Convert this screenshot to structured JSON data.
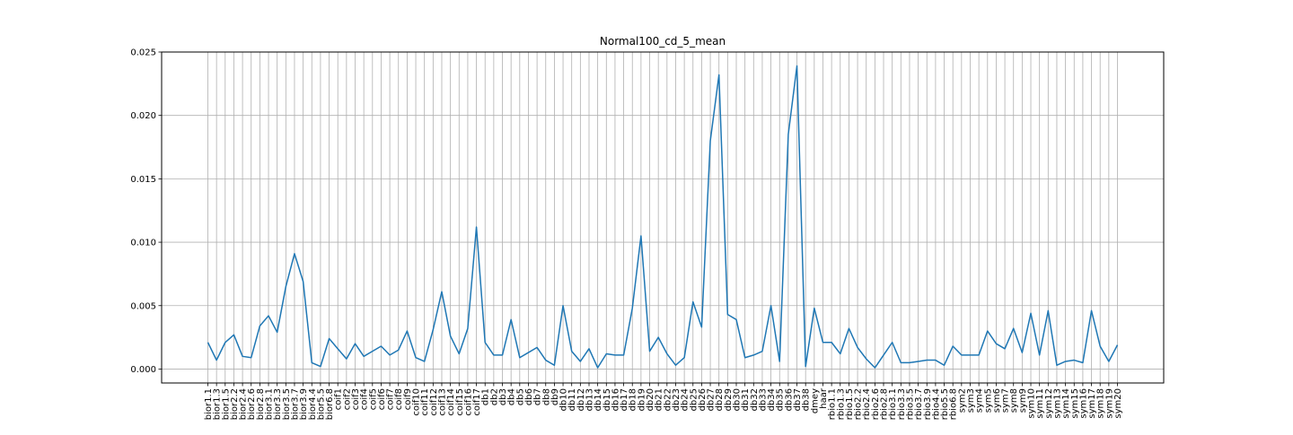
{
  "chart_data": {
    "type": "line",
    "title": "Normal100_cd_5_mean",
    "xlabel": "",
    "ylabel": "",
    "ylim": [
      -0.0011,
      0.025
    ],
    "y_ticks": [
      0.0,
      0.005,
      0.01,
      0.015,
      0.02,
      0.025
    ],
    "y_tick_labels": [
      "0.000",
      "0.005",
      "0.010",
      "0.015",
      "0.020",
      "0.025"
    ],
    "grid": true,
    "line_color": "#1f77b4",
    "categories": [
      "bior1.1",
      "bior1.3",
      "bior1.5",
      "bior2.2",
      "bior2.4",
      "bior2.6",
      "bior2.8",
      "bior3.1",
      "bior3.3",
      "bior3.5",
      "bior3.7",
      "bior3.9",
      "bior4.4",
      "bior5.5",
      "bior6.8",
      "coif1",
      "coif2",
      "coif3",
      "coif4",
      "coif5",
      "coif6",
      "coif7",
      "coif8",
      "coif9",
      "coif10",
      "coif11",
      "coif12",
      "coif13",
      "coif14",
      "coif15",
      "coif16",
      "coif17",
      "db1",
      "db2",
      "db3",
      "db4",
      "db5",
      "db6",
      "db7",
      "db8",
      "db9",
      "db10",
      "db11",
      "db12",
      "db13",
      "db14",
      "db15",
      "db16",
      "db17",
      "db18",
      "db19",
      "db20",
      "db21",
      "db22",
      "db23",
      "db24",
      "db25",
      "db26",
      "db27",
      "db28",
      "db29",
      "db30",
      "db31",
      "db32",
      "db33",
      "db34",
      "db35",
      "db36",
      "db37",
      "db38",
      "dmey",
      "haar",
      "rbio1.1",
      "rbio1.3",
      "rbio1.5",
      "rbio2.2",
      "rbio2.4",
      "rbio2.6",
      "rbio2.8",
      "rbio3.1",
      "rbio3.3",
      "rbio3.5",
      "rbio3.7",
      "rbio3.9",
      "rbio4.4",
      "rbio5.5",
      "rbio6.8",
      "sym2",
      "sym3",
      "sym4",
      "sym5",
      "sym6",
      "sym7",
      "sym8",
      "sym9",
      "sym10",
      "sym11",
      "sym12",
      "sym13",
      "sym14",
      "sym15",
      "sym16",
      "sym17",
      "sym18",
      "sym19",
      "sym20"
    ],
    "values": [
      0.0021,
      0.0007,
      0.0021,
      0.0027,
      0.001,
      0.0009,
      0.0034,
      0.0042,
      0.0029,
      0.0065,
      0.0091,
      0.0069,
      0.0005,
      0.0002,
      0.0024,
      0.0016,
      0.0008,
      0.002,
      0.001,
      0.0014,
      0.0018,
      0.0011,
      0.0015,
      0.003,
      0.0009,
      0.0006,
      0.0031,
      0.0061,
      0.0026,
      0.0012,
      0.0032,
      0.0112,
      0.0021,
      0.0011,
      0.0011,
      0.0039,
      0.0009,
      0.0013,
      0.0017,
      0.0007,
      0.0003,
      0.005,
      0.0014,
      0.0006,
      0.0016,
      0.0001,
      0.0012,
      0.0011,
      0.0011,
      0.0048,
      0.0105,
      0.0014,
      0.0025,
      0.0012,
      0.0003,
      0.0009,
      0.0053,
      0.0033,
      0.018,
      0.0232,
      0.0043,
      0.0039,
      0.0009,
      0.0011,
      0.0014,
      0.005,
      0.0006,
      0.0185,
      0.0239,
      0.0002,
      0.0048,
      0.0021,
      0.0021,
      0.0012,
      0.0032,
      0.0017,
      0.0008,
      0.0001,
      0.0011,
      0.0021,
      0.0005,
      0.0005,
      0.0006,
      0.0007,
      0.0007,
      0.0003,
      0.0018,
      0.0011,
      0.0011,
      0.0011,
      0.003,
      0.002,
      0.0016,
      0.0032,
      0.0013,
      0.0044,
      0.0011,
      0.0046,
      0.0003,
      0.0006,
      0.0007,
      0.0005,
      0.0046,
      0.0018,
      0.0006,
      0.0019
    ]
  }
}
